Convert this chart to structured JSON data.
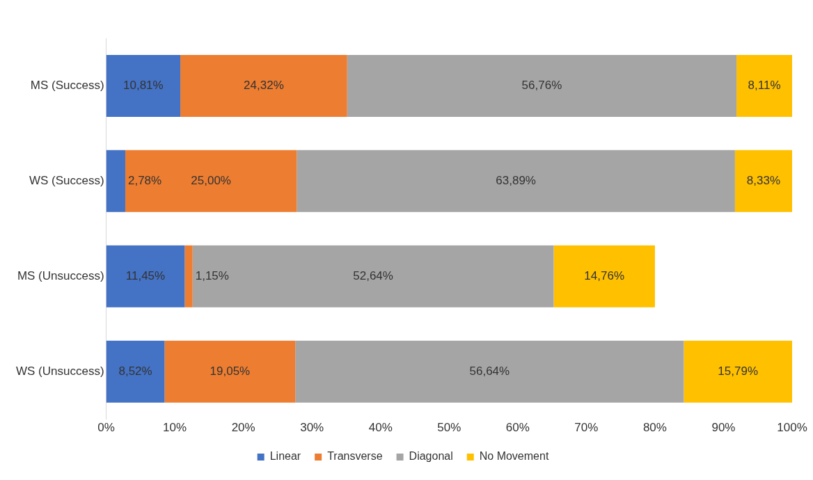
{
  "chart_data": {
    "type": "bar",
    "orientation": "horizontal",
    "stacked": true,
    "grid": false,
    "legend": "bottom",
    "categories": [
      "MS (Success)",
      "WS (Success)",
      "MS (Unsuccess)",
      "WS (Unsuccess)"
    ],
    "xlim": [
      0,
      100
    ],
    "xticks": [
      {
        "value": 0,
        "label": "0%"
      },
      {
        "value": 10,
        "label": "10%"
      },
      {
        "value": 20,
        "label": "20%"
      },
      {
        "value": 30,
        "label": "30%"
      },
      {
        "value": 40,
        "label": "40%"
      },
      {
        "value": 50,
        "label": "50%"
      },
      {
        "value": 60,
        "label": "60%"
      },
      {
        "value": 70,
        "label": "70%"
      },
      {
        "value": 80,
        "label": "80%"
      },
      {
        "value": 90,
        "label": "90%"
      },
      {
        "value": 100,
        "label": "100%"
      }
    ],
    "series": [
      {
        "name": "Linear",
        "color": "#4472c4",
        "values": [
          10.81,
          2.78,
          11.45,
          8.52
        ],
        "value_labels": [
          "10,81%",
          "2,78%",
          "11,45%",
          "8,52%"
        ]
      },
      {
        "name": "Transverse",
        "color": "#ed7d31",
        "values": [
          24.32,
          25.0,
          1.15,
          19.05
        ],
        "value_labels": [
          "24,32%",
          "25,00%",
          "1,15%",
          "19,05%"
        ]
      },
      {
        "name": "Diagonal",
        "color": "#a5a5a5",
        "values": [
          56.76,
          63.89,
          52.64,
          56.64
        ],
        "value_labels": [
          "56,76%",
          "63,89%",
          "52,64%",
          "56,64%"
        ]
      },
      {
        "name": "No Movement",
        "color": "#ffc000",
        "values": [
          8.11,
          8.33,
          14.76,
          15.79
        ],
        "value_labels": [
          "8,11%",
          "8,33%",
          "14,76%",
          "15,79%"
        ]
      }
    ]
  }
}
